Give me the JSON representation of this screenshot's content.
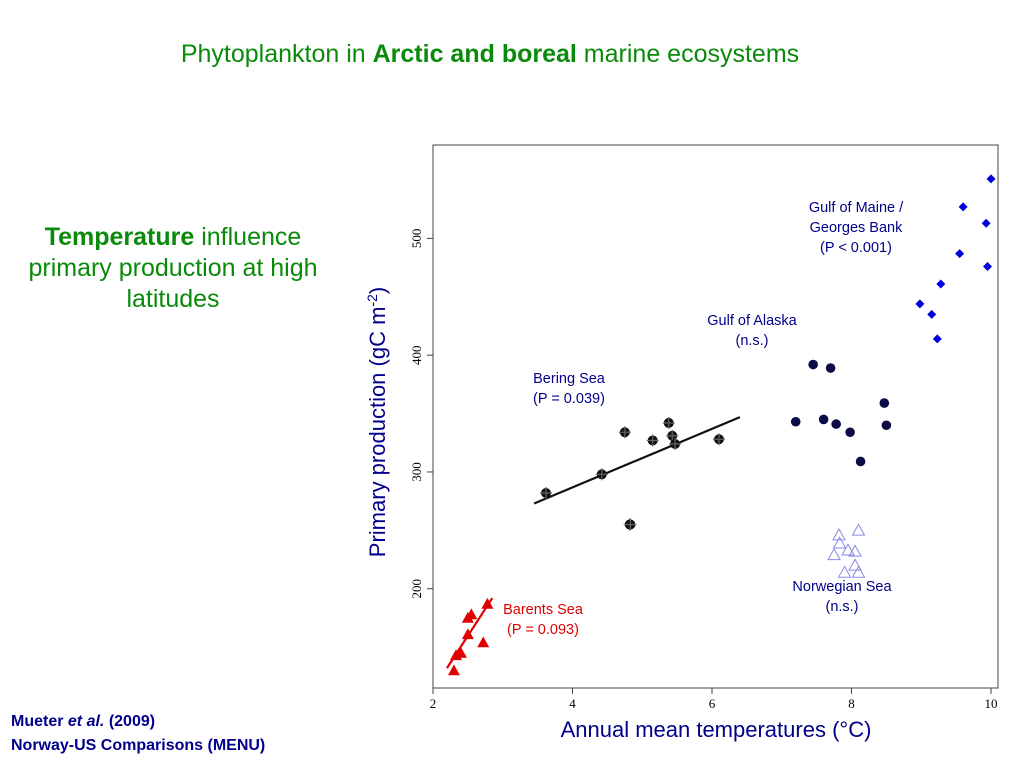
{
  "slide": {
    "title_pre": "Phytoplankton in ",
    "title_bold": "Arctic and boreal",
    "title_post": " marine ecosystems",
    "side_bold": "Temperature",
    "side_rest": " influence primary production at high latitudes",
    "citation_line1_pre": "Mueter ",
    "citation_line1_italic": "et al.",
    "citation_line1_post": " (2009)",
    "citation_line2": "Norway-US Comparisons (MENU)"
  },
  "colors": {
    "title_green": "#0a8a0a",
    "navy": "#00008b",
    "bering": "#111111",
    "alaska": "#0b0b45",
    "maine": "#0000dd",
    "norwegian": "#8a8ae6",
    "barents": "#e00000"
  },
  "chart_data": {
    "type": "scatter",
    "xlabel": "Annual mean temperatures (°C)",
    "ylabel_main": "Primary production (gC m",
    "ylabel_sup": "-2",
    "ylabel_close": ")",
    "xlim": [
      2,
      10.1
    ],
    "ylim": [
      115,
      580
    ],
    "x_ticks": [
      2,
      4,
      6,
      8,
      10
    ],
    "y_ticks": [
      200,
      300,
      400,
      500
    ],
    "series": [
      {
        "key": "bering",
        "marker": "plus-circle",
        "x": [
          3.62,
          4.42,
          4.75,
          4.82,
          4.83,
          5.15,
          5.38,
          5.43,
          5.47,
          6.1
        ],
        "y": [
          282,
          298,
          334,
          255,
          255,
          327,
          342,
          331,
          324,
          328
        ],
        "fit": [
          [
            3.45,
            273
          ],
          [
            6.4,
            347
          ]
        ],
        "label_lines": [
          "Bering Sea",
          "(P = 0.039)"
        ]
      },
      {
        "key": "alaska",
        "marker": "circle",
        "x": [
          7.2,
          7.45,
          7.6,
          7.7,
          7.78,
          7.98,
          8.13,
          8.47,
          8.5
        ],
        "y": [
          343,
          392,
          345,
          389,
          341,
          334,
          309,
          359,
          340
        ],
        "label_lines": [
          "Gulf of Alaska",
          "(n.s.)"
        ]
      },
      {
        "key": "maine",
        "marker": "diamond",
        "x": [
          8.98,
          9.15,
          9.23,
          9.28,
          9.55,
          9.6,
          9.93,
          9.95,
          10.0
        ],
        "y": [
          444,
          435,
          414,
          461,
          487,
          527,
          513,
          476,
          551
        ],
        "label_lines": [
          "Gulf of Maine /",
          "Georges Bank",
          "(P < 0.001)"
        ]
      },
      {
        "key": "norwegian",
        "marker": "triangle-open",
        "x": [
          7.75,
          7.82,
          7.83,
          7.9,
          7.95,
          8.05,
          8.05,
          8.1,
          8.1
        ],
        "y": [
          229,
          246,
          239,
          214,
          233,
          220,
          232,
          250,
          214
        ],
        "label_lines": [
          "Norwegian Sea",
          "(n.s.)"
        ]
      },
      {
        "key": "barents",
        "marker": "triangle-filled",
        "x": [
          2.3,
          2.33,
          2.4,
          2.5,
          2.5,
          2.55,
          2.72,
          2.78
        ],
        "y": [
          130,
          143,
          145,
          161,
          175,
          178,
          154,
          187
        ],
        "fit": [
          [
            2.2,
            132
          ],
          [
            2.85,
            192
          ]
        ],
        "label_lines": [
          "Barents Sea",
          "(P = 0.093)"
        ]
      }
    ]
  }
}
